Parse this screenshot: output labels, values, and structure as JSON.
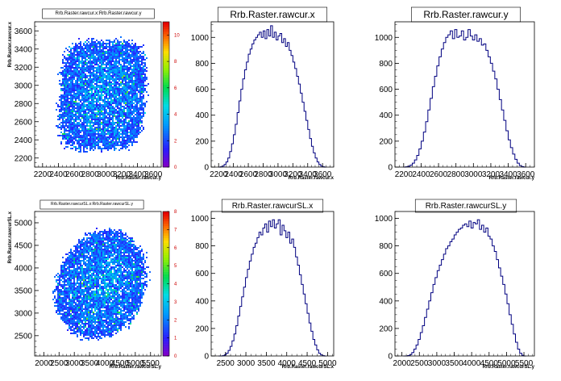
{
  "app": {
    "window_title": ""
  },
  "chart_data": [
    {
      "type": "heatmap",
      "title": "Rrb.Raster.rawcur.x:Rrb.Raster.rawcur.y",
      "xlabel": "Rrb.Raster.rawcur.y",
      "ylabel": "Rrb.Raster.rawcur.x",
      "xlim": [
        2100,
        3700
      ],
      "ylim": [
        2100,
        3700
      ],
      "xticks": [
        "2200",
        "2400",
        "2600",
        "2800",
        "3000",
        "3200",
        "3400",
        "3600"
      ],
      "yticks": [
        "2200",
        "2400",
        "2600",
        "2800",
        "3000",
        "3200",
        "3400",
        "3600"
      ],
      "z_range": [
        0,
        11
      ],
      "zticks": [
        "0",
        "2",
        "4",
        "6",
        "8",
        "10"
      ],
      "distribution": {
        "x_center": 2950,
        "y_center": 2900,
        "x_halfwidth": 560,
        "y_halfwidth": 620,
        "shape": "rounded-square",
        "shear": 0.15
      },
      "palette": "rainbow",
      "grid": false
    },
    {
      "type": "histogram",
      "title": "Rrb.Raster.rawcur.x",
      "xlabel": "Rrb.Raster.rawcur.x",
      "xlim": [
        2100,
        3750
      ],
      "ylim": [
        0,
        1120
      ],
      "xticks": [
        "2200",
        "2400",
        "2600",
        "2800",
        "3000",
        "3200",
        "3400",
        "3600"
      ],
      "yticks": [
        "0",
        "200",
        "400",
        "600",
        "800",
        "1000"
      ],
      "values": [
        0,
        2,
        8,
        20,
        40,
        70,
        120,
        180,
        250,
        330,
        420,
        510,
        600,
        680,
        750,
        810,
        870,
        910,
        950,
        980,
        1000,
        1020,
        1040,
        1000,
        1050,
        990,
        1060,
        1010,
        1090,
        1000,
        1040,
        980,
        1010,
        1030,
        960,
        990,
        930,
        960,
        900,
        860,
        810,
        760,
        700,
        640,
        570,
        500,
        430,
        360,
        290,
        220,
        160,
        110,
        70,
        40,
        20,
        8,
        2,
        0
      ]
    },
    {
      "type": "histogram",
      "title": "Rrb.Raster.rawcur.y",
      "xlabel": "Rrb.Raster.rawcur.y",
      "xlim": [
        2100,
        3700
      ],
      "ylim": [
        0,
        1120
      ],
      "xticks": [
        "2200",
        "2400",
        "2600",
        "2800",
        "3000",
        "3200",
        "3400",
        "3600"
      ],
      "yticks": [
        "0",
        "200",
        "400",
        "600",
        "800",
        "1000"
      ],
      "values": [
        0,
        2,
        6,
        15,
        30,
        55,
        90,
        140,
        200,
        270,
        350,
        440,
        530,
        620,
        700,
        780,
        850,
        910,
        960,
        1000,
        1020,
        1050,
        990,
        1060,
        1000,
        1010,
        1050,
        980,
        1000,
        1060,
        1010,
        980,
        1020,
        970,
        990,
        940,
        950,
        900,
        850,
        800,
        740,
        680,
        600,
        520,
        440,
        360,
        280,
        210,
        150,
        100,
        60,
        30,
        12,
        4,
        0
      ]
    },
    {
      "type": "heatmap",
      "title": "Rrb.Raster.rawcurSL.x:Rrb.Raster.rawcurSL.y",
      "xlabel": "Rrb.Raster.rawcurSL.y",
      "ylabel": "Rrb.Raster.rawcurSL.x",
      "xlim": [
        1700,
        5850
      ],
      "ylim": [
        2050,
        5250
      ],
      "xticks": [
        "2000",
        "2500",
        "3000",
        "3500",
        "4000",
        "4500",
        "5000",
        "5500"
      ],
      "yticks": [
        "2500",
        "3000",
        "3500",
        "4000",
        "4500",
        "5000"
      ],
      "z_range": [
        0,
        8
      ],
      "zticks": [
        "0",
        "1",
        "2",
        "3",
        "4",
        "5",
        "6",
        "7",
        "8"
      ],
      "distribution": {
        "x_center": 3850,
        "y_center": 3650,
        "x_halfwidth": 1550,
        "y_halfwidth": 1250,
        "shape": "ellipse",
        "shear": 0.3
      },
      "palette": "rainbow",
      "grid": false
    },
    {
      "type": "histogram",
      "title": "Rrb.Raster.rawcurSL.x",
      "xlabel": "Rrb.Raster.rawcurSL.x",
      "xlim": [
        2150,
        5150
      ],
      "ylim": [
        0,
        1050
      ],
      "xticks": [
        "2500",
        "3000",
        "3500",
        "4000",
        "4500",
        "5000"
      ],
      "yticks": [
        "0",
        "200",
        "400",
        "600",
        "800",
        "1000"
      ],
      "values": [
        0,
        0,
        2,
        8,
        20,
        40,
        70,
        110,
        160,
        220,
        290,
        360,
        430,
        500,
        570,
        630,
        690,
        740,
        790,
        820,
        860,
        900,
        880,
        930,
        960,
        900,
        980,
        940,
        990,
        930,
        960,
        990,
        880,
        950,
        910,
        860,
        900,
        820,
        850,
        790,
        720,
        660,
        590,
        520,
        450,
        380,
        310,
        240,
        180,
        120,
        80,
        45,
        20,
        8,
        2,
        0
      ]
    },
    {
      "type": "histogram",
      "title": "Rrb.Raster.rawcurSL.y",
      "xlabel": "Rrb.Raster.rawcurSL.y",
      "xlim": [
        1800,
        5800
      ],
      "ylim": [
        0,
        1050
      ],
      "xticks": [
        "2000",
        "2500",
        "3000",
        "3500",
        "4000",
        "4500",
        "5000",
        "5500"
      ],
      "yticks": [
        "0",
        "200",
        "400",
        "600",
        "800",
        "1000"
      ],
      "values": [
        0,
        0,
        3,
        10,
        25,
        50,
        80,
        120,
        170,
        220,
        280,
        340,
        400,
        460,
        520,
        570,
        620,
        660,
        700,
        740,
        780,
        800,
        830,
        850,
        880,
        900,
        920,
        930,
        950,
        960,
        940,
        980,
        930,
        970,
        960,
        990,
        920,
        950,
        900,
        930,
        870,
        850,
        800,
        760,
        700,
        640,
        580,
        520,
        450,
        380,
        300,
        230,
        160,
        100,
        50,
        20,
        5,
        0
      ]
    }
  ]
}
